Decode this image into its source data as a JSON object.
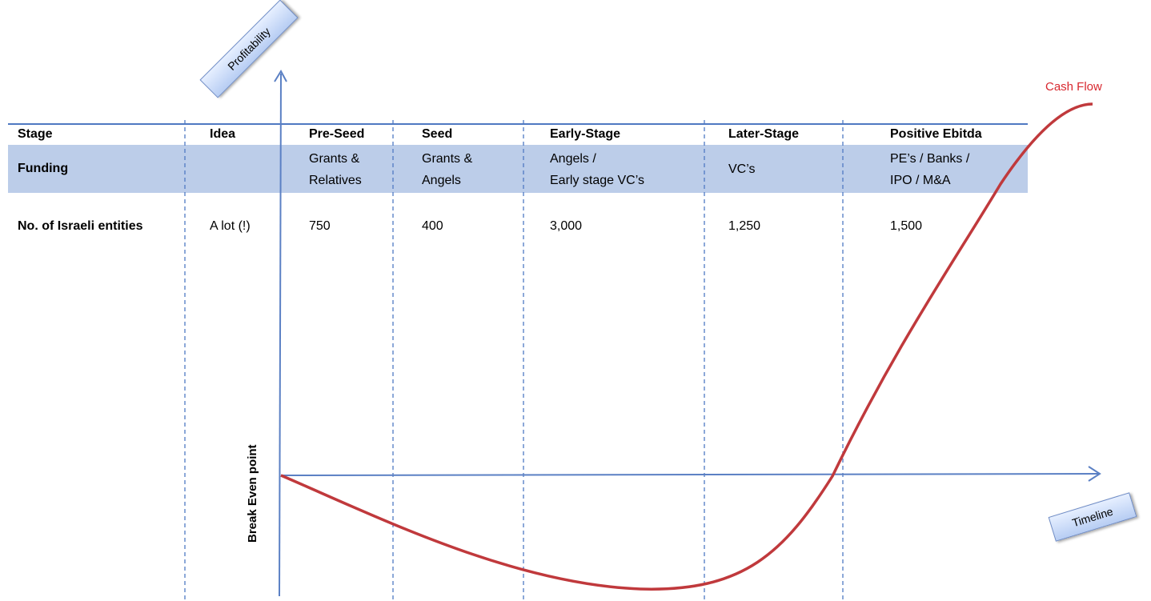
{
  "axes": {
    "y_label": "Profitability",
    "x_label": "Timeline",
    "break_even_label": "Break Even point",
    "curve_label": "Cash Flow"
  },
  "colors": {
    "funding_band": "#bccde9",
    "grid_line": "#4f79c2",
    "axis": "#5b80c4",
    "curve": "#c0393c",
    "curve_label": "#d8282f"
  },
  "table": {
    "stage_label": "Stage",
    "funding_label": "Funding",
    "entities_label": "No. of Israeli entities",
    "stages": [
      {
        "name": "Idea",
        "funding": [
          "",
          ""
        ],
        "entities": "A lot (!)"
      },
      {
        "name": "Pre-Seed",
        "funding": [
          "Grants &",
          "Relatives"
        ],
        "entities": "750"
      },
      {
        "name": "Seed",
        "funding": [
          "Grants &",
          "Angels"
        ],
        "entities": "400"
      },
      {
        "name": "Early-Stage",
        "funding": [
          "Angels /",
          "Early stage VC’s"
        ],
        "entities": "3,000"
      },
      {
        "name": "Later-Stage",
        "funding": [
          "VC’s",
          ""
        ],
        "entities": "1,250"
      },
      {
        "name": "Positive Ebitda",
        "funding": [
          "PE’s / Banks /",
          "IPO / M&A"
        ],
        "entities": "1,500"
      }
    ]
  }
}
